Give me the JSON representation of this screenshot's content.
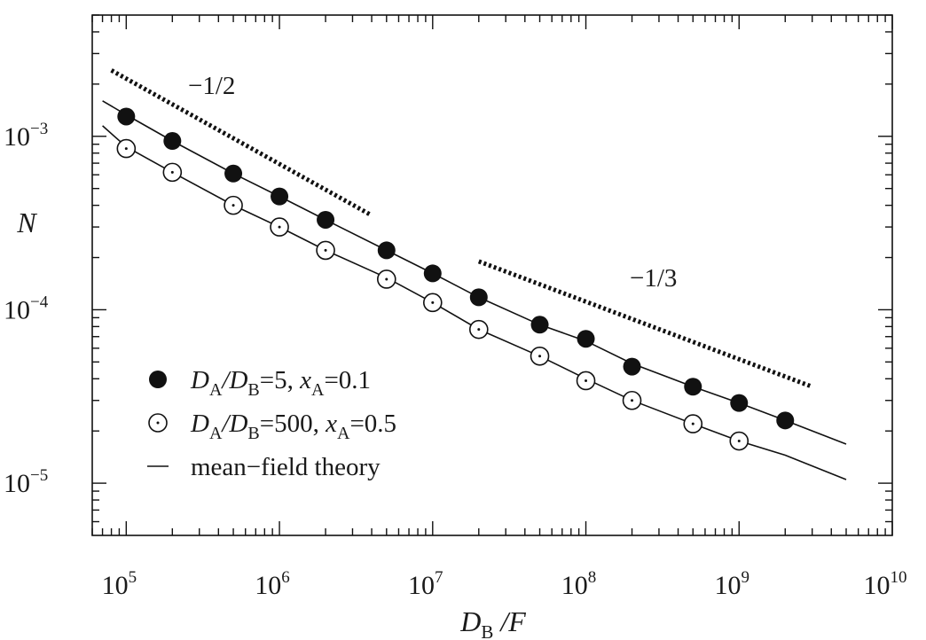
{
  "chart_data": {
    "type": "scatter",
    "x_scale": "log",
    "y_scale": "log",
    "xlim": [
      60000,
      10000000000
    ],
    "ylim": [
      5e-06,
      0.005
    ],
    "xlabel": {
      "main": "D",
      "sub": "B",
      "tail": " /F"
    },
    "ylabel": "N",
    "x_ticks": [
      {
        "base": "10",
        "exp": "5",
        "value": 100000
      },
      {
        "base": "10",
        "exp": "6",
        "value": 1000000
      },
      {
        "base": "10",
        "exp": "7",
        "value": 10000000
      },
      {
        "base": "10",
        "exp": "8",
        "value": 100000000
      },
      {
        "base": "10",
        "exp": "9",
        "value": 1000000000
      },
      {
        "base": "10",
        "exp": "10",
        "value": 10000000000
      }
    ],
    "y_ticks": [
      {
        "base": "10",
        "exp": "−5",
        "value": 1e-05
      },
      {
        "base": "10",
        "exp": "−4",
        "value": 0.0001
      },
      {
        "base": "10",
        "exp": "−3",
        "value": 0.001
      }
    ],
    "series": [
      {
        "name": "D_A/D_B=5, x_A=0.1",
        "legend_parts": [
          "D",
          "A",
          "/",
          "D",
          "B",
          "=5, ",
          "x",
          "A",
          "=0.1"
        ],
        "marker": "filled-circle",
        "x": [
          100000,
          200000,
          500000,
          1000000,
          2000000,
          5000000,
          10000000,
          20000000,
          50000000,
          100000000,
          200000000,
          500000000,
          1000000000,
          2000000000
        ],
        "y": [
          0.0013,
          0.00094,
          0.00061,
          0.00045,
          0.00033,
          0.00022,
          0.000162,
          0.000118,
          8.2e-05,
          6.8e-05,
          4.7e-05,
          3.6e-05,
          2.9e-05,
          2.3e-05
        ]
      },
      {
        "name": "D_A/D_B=500, x_A=0.5",
        "legend_parts": [
          "D",
          "A",
          "/",
          "D",
          "B",
          "=500, ",
          "x",
          "A",
          "=0.5"
        ],
        "marker": "open-circle-dot",
        "x": [
          100000,
          200000,
          500000,
          1000000,
          2000000,
          5000000,
          10000000,
          20000000,
          50000000,
          100000000,
          200000000,
          500000000,
          1000000000
        ],
        "y": [
          0.00085,
          0.00062,
          0.0004,
          0.0003,
          0.00022,
          0.00015,
          0.00011,
          7.7e-05,
          5.4e-05,
          3.9e-05,
          3e-05,
          2.2e-05,
          1.75e-05
        ]
      }
    ],
    "theory_curves": [
      {
        "name": "mean−field theory",
        "x": [
          70000,
          100000,
          200000,
          500000,
          1000000,
          2000000,
          5000000,
          10000000,
          20000000,
          50000000,
          100000000,
          200000000,
          500000000,
          1000000000,
          2000000000,
          5000000000
        ],
        "y": [
          0.0016,
          0.00133,
          0.00094,
          0.00061,
          0.00045,
          0.00033,
          0.00022,
          0.000162,
          0.000118,
          8.2e-05,
          6.6e-05,
          4.9e-05,
          3.6e-05,
          2.9e-05,
          2.3e-05,
          1.68e-05
        ]
      },
      {
        "name": "mean−field theory",
        "x": [
          70000,
          100000,
          200000,
          500000,
          1000000,
          2000000,
          5000000,
          10000000,
          20000000,
          50000000,
          100000000,
          200000000,
          500000000,
          1000000000,
          2000000000,
          5000000000
        ],
        "y": [
          0.00115,
          0.00087,
          0.00062,
          0.0004,
          0.0003,
          0.00022,
          0.000153,
          0.00011,
          7.7e-05,
          5.4e-05,
          4e-05,
          3e-05,
          2.2e-05,
          1.75e-05,
          1.45e-05,
          1.05e-05
        ]
      }
    ],
    "slope_guides": [
      {
        "label": "−1/2",
        "x": [
          80000,
          4000000
        ],
        "y": [
          0.0024,
          0.00035
        ]
      },
      {
        "label": "−1/3",
        "x": [
          20000000,
          3000000000
        ],
        "y": [
          0.00019,
          3.6e-05
        ]
      }
    ],
    "legend": {
      "position": "bottom-left",
      "line_entry": "mean−field theory"
    },
    "grid": false
  }
}
